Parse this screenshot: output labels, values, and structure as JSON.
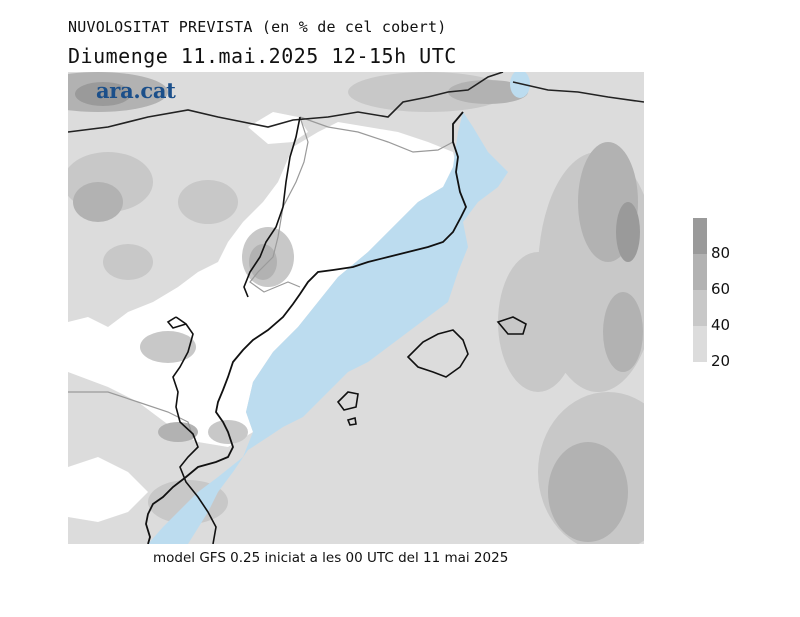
{
  "header": {
    "title": "NUVOLOSITAT PREVISTA (en % de cel cobert)",
    "subtitle": "Diumenge  11.mai.2025  12-15h  UTC"
  },
  "brand": {
    "logo_text": "ara.cat",
    "color": "#1b4f8a"
  },
  "map": {
    "sea_color": "#bcdcef",
    "land_clear_color": "#ffffff",
    "coastline_color": "#111111",
    "border_color": "#9a9a9a"
  },
  "legend": {
    "levels": [
      {
        "label": "80",
        "color": "#9a9a9a"
      },
      {
        "label": "60",
        "color": "#b2b2b2"
      },
      {
        "label": "40",
        "color": "#c8c8c8"
      },
      {
        "label": "20",
        "color": "#dcdcdc"
      }
    ]
  },
  "footer": {
    "text": "model GFS 0.25 iniciat a les 00 UTC del 11 mai 2025"
  }
}
